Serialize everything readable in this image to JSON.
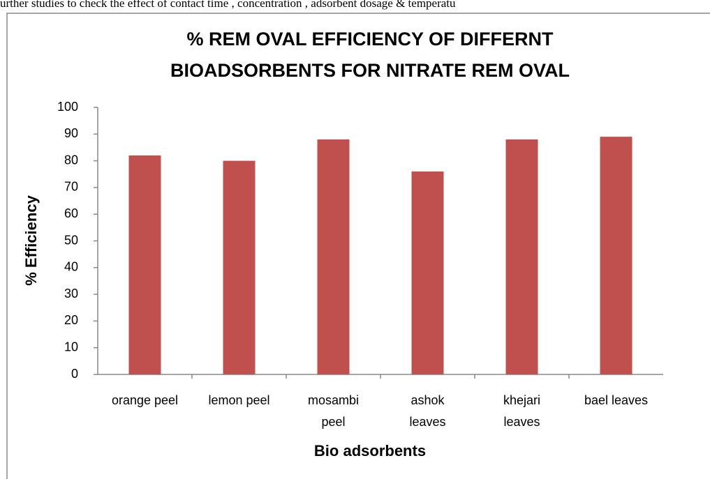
{
  "header_text": "urther studies to check the effect  of contact time , concentration , adsorbent dosage & temperatu",
  "chart_data": {
    "type": "bar",
    "title": [
      "%  REM OVAL EFFICIENCY OF DIFFERNT",
      "BIOADSORBENTS FOR NITRATE REM OVAL"
    ],
    "x_label": "Bio adsorbents",
    "y_label": "%  Efficiency",
    "categories": [
      "orange peel",
      "lemon peel",
      "mosambi peel",
      "ashok leaves",
      "khejari leaves",
      "bael leaves"
    ],
    "values": [
      82,
      80,
      88,
      76,
      88,
      89
    ],
    "color": "#c0504d",
    "ylim": [
      0,
      100
    ],
    "yticks": [
      0,
      10,
      20,
      30,
      40,
      50,
      60,
      70,
      80,
      90,
      100
    ],
    "grid": false
  }
}
